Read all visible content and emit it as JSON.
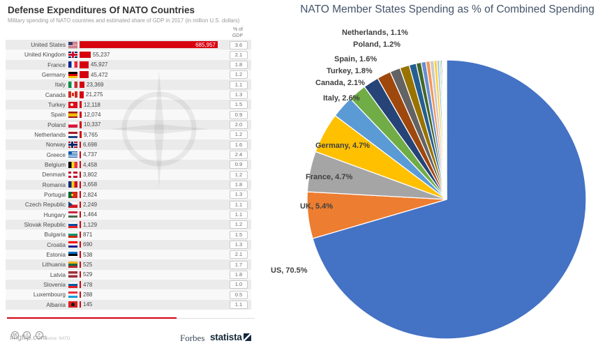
{
  "footer": {
    "license_icons": [
      "cc",
      "i",
      "="
    ],
    "watermark": "imgflip.com",
    "source_note": "Source: NATO",
    "brand_forbes": "Forbes",
    "brand_statista": "statista"
  },
  "chart_data": [
    {
      "type": "bar",
      "orientation": "horizontal",
      "title": "Defense Expenditures Of NATO Countries",
      "subtitle": "Military spending of NATO countries and estimated share of GDP in 2017 (in million U.S. dollars)",
      "gdp_header": "% of GDP",
      "unit": "million U.S. dollars",
      "bar_color": "#d7000f",
      "xlim": [
        0,
        685957
      ],
      "rows": [
        {
          "country": "United States",
          "value": 685957,
          "value_label": "685,957",
          "gdp": "3.6",
          "flag": {
            "t": "x",
            "x": "us"
          }
        },
        {
          "country": "United Kingdom",
          "value": 55237,
          "value_label": "55,237",
          "gdp": "2.1",
          "flag": {
            "t": "x",
            "x": "uk"
          }
        },
        {
          "country": "France",
          "value": 45927,
          "value_label": "45,927",
          "gdp": "1.8",
          "flag": {
            "t": "v",
            "c": [
              "#002395",
              "#ffffff",
              "#ED2939"
            ]
          }
        },
        {
          "country": "Germany",
          "value": 45472,
          "value_label": "45,472",
          "gdp": "1.2",
          "flag": {
            "t": "h",
            "c": [
              "#000000",
              "#DD0000",
              "#FFCE00"
            ]
          }
        },
        {
          "country": "Italy",
          "value": 23369,
          "value_label": "23,369",
          "gdp": "1.1",
          "flag": {
            "t": "v",
            "c": [
              "#009246",
              "#ffffff",
              "#CE2B37"
            ]
          }
        },
        {
          "country": "Canada",
          "value": 21275,
          "value_label": "21,275",
          "gdp": "1.3",
          "flag": {
            "t": "v",
            "c": [
              "#D52B1E 0% 30%",
              "#ffffff 30% 70%",
              "#D52B1E 70% 100%"
            ],
            "x": "ca"
          }
        },
        {
          "country": "Turkey",
          "value": 12118,
          "value_label": "12,118",
          "gdp": "1.5",
          "flag": {
            "t": "s",
            "c": [
              "#E30A17"
            ],
            "x": "tr"
          }
        },
        {
          "country": "Spain",
          "value": 12074,
          "value_label": "12,074",
          "gdp": "0.9",
          "flag": {
            "t": "h",
            "c": [
              "#AA151B 0% 25%",
              "#F1BF00 25% 75%",
              "#AA151B 75% 100%"
            ]
          }
        },
        {
          "country": "Poland",
          "value": 10337,
          "value_label": "10,337",
          "gdp": "2.0",
          "flag": {
            "t": "h",
            "c": [
              "#ffffff",
              "#DC143C"
            ]
          }
        },
        {
          "country": "Netherlands",
          "value": 9765,
          "value_label": "9,765",
          "gdp": "1.2",
          "flag": {
            "t": "h",
            "c": [
              "#AE1C28",
              "#ffffff",
              "#21468B"
            ]
          }
        },
        {
          "country": "Norway",
          "value": 6698,
          "value_label": "6,698",
          "gdp": "1.6",
          "flag": {
            "t": "x",
            "x": "no"
          }
        },
        {
          "country": "Greece",
          "value": 4737,
          "value_label": "4,737",
          "gdp": "2.4",
          "flag": {
            "t": "x",
            "x": "gr"
          }
        },
        {
          "country": "Belgium",
          "value": 4458,
          "value_label": "4,458",
          "gdp": "0.9",
          "flag": {
            "t": "v",
            "c": [
              "#000000",
              "#FDDA24",
              "#EF3340"
            ]
          }
        },
        {
          "country": "Denmark",
          "value": 3802,
          "value_label": "3,802",
          "gdp": "1.2",
          "flag": {
            "t": "x",
            "x": "dk"
          }
        },
        {
          "country": "Romania",
          "value": 3658,
          "value_label": "3,658",
          "gdp": "1.8",
          "flag": {
            "t": "v",
            "c": [
              "#002B7F",
              "#FCD116",
              "#CE1126"
            ]
          }
        },
        {
          "country": "Portugal",
          "value": 2824,
          "value_label": "2,824",
          "gdp": "1.3",
          "flag": {
            "t": "v",
            "c": [
              "#046A38 0% 40%",
              "#DA291C 40% 100%"
            ],
            "x": "pt"
          }
        },
        {
          "country": "Czech Republic",
          "value": 2249,
          "value_label": "2,249",
          "gdp": "1.1",
          "flag": {
            "t": "x",
            "x": "cz"
          }
        },
        {
          "country": "Hungary",
          "value": 1464,
          "value_label": "1,464",
          "gdp": "1.1",
          "flag": {
            "t": "h",
            "c": [
              "#CD2A3E",
              "#ffffff",
              "#436F4D"
            ]
          }
        },
        {
          "country": "Slovak Republic",
          "value": 1129,
          "value_label": "1,129",
          "gdp": "1.2",
          "flag": {
            "t": "h",
            "c": [
              "#ffffff",
              "#0B4EA2",
              "#EE1C25"
            ]
          }
        },
        {
          "country": "Bulgaria",
          "value": 871,
          "value_label": "871",
          "gdp": "1.5",
          "flag": {
            "t": "h",
            "c": [
              "#ffffff",
              "#00966E",
              "#D62612"
            ]
          }
        },
        {
          "country": "Croatia",
          "value": 690,
          "value_label": "690",
          "gdp": "1.3",
          "flag": {
            "t": "h",
            "c": [
              "#FF0000",
              "#ffffff",
              "#171796"
            ]
          }
        },
        {
          "country": "Estonia",
          "value": 538,
          "value_label": "538",
          "gdp": "2.1",
          "flag": {
            "t": "h",
            "c": [
              "#0072CE",
              "#000000",
              "#ffffff"
            ]
          }
        },
        {
          "country": "Lithuania",
          "value": 525,
          "value_label": "525",
          "gdp": "1.7",
          "flag": {
            "t": "h",
            "c": [
              "#FDB913",
              "#006A44",
              "#C1272D"
            ]
          }
        },
        {
          "country": "Latvia",
          "value": 529,
          "value_label": "529",
          "gdp": "1.8",
          "flag": {
            "t": "h",
            "c": [
              "#9E3039 0% 40%",
              "#ffffff 40% 60%",
              "#9E3039 60% 100%"
            ]
          }
        },
        {
          "country": "Slovenia",
          "value": 478,
          "value_label": "478",
          "gdp": "1.0",
          "flag": {
            "t": "h",
            "c": [
              "#ffffff",
              "#005DA4",
              "#ED1C24"
            ]
          }
        },
        {
          "country": "Luxembourg",
          "value": 288,
          "value_label": "288",
          "gdp": "0.5",
          "flag": {
            "t": "h",
            "c": [
              "#EF3340",
              "#ffffff",
              "#00A2E1"
            ]
          }
        },
        {
          "country": "Albania",
          "value": 145,
          "value_label": "145",
          "gdp": "1.1",
          "flag": {
            "t": "s",
            "c": [
              "#E41E20"
            ],
            "x": "al"
          }
        }
      ]
    },
    {
      "type": "pie",
      "title": "NATO Member States Spending as % of Combined Spending",
      "start_angle_deg": -90,
      "direction": "clockwise",
      "note": "Slices below 1.1% are unlabeled in the image; their percentages are estimated from the bar data.",
      "slices": [
        {
          "name": "US",
          "pct": 70.5,
          "color": "#4472C4",
          "label_text": "US, 70.5%",
          "label_pos": [
            388,
            382
          ]
        },
        {
          "name": "UK",
          "pct": 5.4,
          "color": "#ED7D31",
          "label_text": "UK, 5.4%",
          "label_pos": [
            430,
            290
          ]
        },
        {
          "name": "France",
          "pct": 4.7,
          "color": "#A5A5A5",
          "label_text": "France, 4.7%",
          "label_pos": [
            438,
            248
          ]
        },
        {
          "name": "Germany",
          "pct": 4.7,
          "color": "#FFC000",
          "label_text": "Germany, 4.7%",
          "label_pos": [
            452,
            203
          ]
        },
        {
          "name": "Italy",
          "pct": 2.6,
          "color": "#5B9BD5",
          "label_text": "Italy, 2.6%",
          "label_pos": [
            463,
            135
          ]
        },
        {
          "name": "Canada",
          "pct": 2.1,
          "color": "#70AD47",
          "label_text": "Canada, 2.1%",
          "label_pos": [
            452,
            113
          ]
        },
        {
          "name": "Turkey",
          "pct": 1.8,
          "color": "#264478",
          "label_text": "Turkey, 1.8%",
          "label_pos": [
            468,
            96
          ]
        },
        {
          "name": "Spain",
          "pct": 1.6,
          "color": "#9E480E",
          "label_text": "Spain, 1.6%",
          "label_pos": [
            479,
            79
          ]
        },
        {
          "name": "Poland",
          "pct": 1.2,
          "color": "#636363",
          "label_text": "Poland, 1.2%",
          "label_pos": [
            506,
            58
          ]
        },
        {
          "name": "Netherlands",
          "pct": 1.1,
          "color": "#997300",
          "label_text": "Netherlands, 1.1%",
          "label_pos": [
            490,
            41
          ]
        },
        {
          "name": "Norway",
          "pct": 0.82,
          "color": "#255E91",
          "estimated": true
        },
        {
          "name": "Greece",
          "pct": 0.58,
          "color": "#43682B",
          "estimated": true
        },
        {
          "name": "Belgium",
          "pct": 0.55,
          "color": "#698ED0",
          "estimated": true
        },
        {
          "name": "Denmark",
          "pct": 0.47,
          "color": "#F1975A",
          "estimated": true
        },
        {
          "name": "Romania",
          "pct": 0.45,
          "color": "#C9C9C9",
          "estimated": true
        },
        {
          "name": "Portugal",
          "pct": 0.35,
          "color": "#FFCD33",
          "estimated": true
        },
        {
          "name": "Czech Republic",
          "pct": 0.28,
          "color": "#9DC3E6",
          "estimated": true
        },
        {
          "name": "Hungary",
          "pct": 0.18,
          "color": "#A9D18E",
          "estimated": true
        },
        {
          "name": "Slovak Republic",
          "pct": 0.14,
          "color": "#203864",
          "estimated": true
        },
        {
          "name": "Bulgaria",
          "pct": 0.11,
          "color": "#843C0C",
          "estimated": true
        },
        {
          "name": "Croatia",
          "pct": 0.09,
          "color": "#525252",
          "estimated": true
        },
        {
          "name": "Estonia",
          "pct": 0.07,
          "color": "#7F6000",
          "estimated": true
        },
        {
          "name": "Lithuania",
          "pct": 0.06,
          "color": "#1F4E79",
          "estimated": true
        },
        {
          "name": "Latvia",
          "pct": 0.06,
          "color": "#375623",
          "estimated": true
        },
        {
          "name": "Slovenia",
          "pct": 0.06,
          "color": "#B4C7E7",
          "estimated": true
        },
        {
          "name": "Luxembourg",
          "pct": 0.04,
          "color": "#F8CBAD",
          "estimated": true
        },
        {
          "name": "Albania",
          "pct": 0.02,
          "color": "#DBDBDB",
          "estimated": true
        }
      ]
    }
  ]
}
